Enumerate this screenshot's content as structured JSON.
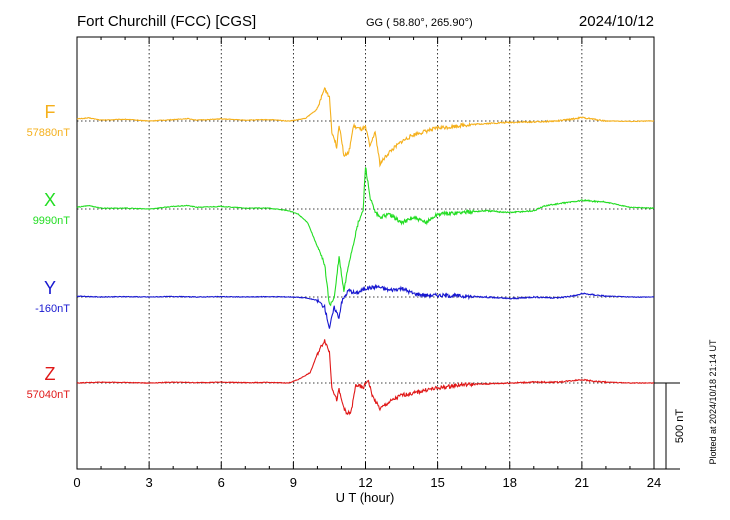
{
  "header": {
    "station": "Fort Churchill (FCC)  [CGS]",
    "coords": "GG ( 58.80°, 265.90°)",
    "date": "2024/10/12"
  },
  "footer": {
    "plotted": "Plotted at 2024/10/18 21:14 UT"
  },
  "chart_data": {
    "type": "line",
    "xlabel": "U T (hour)",
    "xlim": [
      0,
      24
    ],
    "xticks": [
      "0",
      "3",
      "6",
      "9",
      "12",
      "15",
      "18",
      "21",
      "24"
    ],
    "scale_bar": {
      "label": "500 nT",
      "value_nT": 500
    },
    "grid": true,
    "series": [
      {
        "name": "F",
        "baseline_label": "57880nT",
        "color": "#f5b01c",
        "points": [
          [
            0,
            12
          ],
          [
            0.5,
            18
          ],
          [
            1,
            5
          ],
          [
            2,
            10
          ],
          [
            3,
            0
          ],
          [
            4,
            8
          ],
          [
            4.6,
            14
          ],
          [
            5,
            5
          ],
          [
            6,
            12
          ],
          [
            7,
            5
          ],
          [
            8,
            8
          ],
          [
            8.8,
            0
          ],
          [
            9,
            3
          ],
          [
            9.5,
            15
          ],
          [
            10,
            70
          ],
          [
            10.3,
            190
          ],
          [
            10.5,
            140
          ],
          [
            10.6,
            -60
          ],
          [
            10.8,
            -150
          ],
          [
            10.9,
            -20
          ],
          [
            11,
            -100
          ],
          [
            11.1,
            -200
          ],
          [
            11.3,
            -190
          ],
          [
            11.5,
            -30
          ],
          [
            11.8,
            -50
          ],
          [
            12,
            -40
          ],
          [
            12.2,
            -150
          ],
          [
            12.4,
            -60
          ],
          [
            12.6,
            -250
          ],
          [
            13,
            -180
          ],
          [
            13.5,
            -120
          ],
          [
            14,
            -80
          ],
          [
            14.5,
            -60
          ],
          [
            15,
            -40
          ],
          [
            15.5,
            -35
          ],
          [
            16,
            -25
          ],
          [
            17,
            -15
          ],
          [
            18,
            -8
          ],
          [
            19,
            -5
          ],
          [
            20,
            0
          ],
          [
            20.8,
            15
          ],
          [
            21,
            20
          ],
          [
            21.5,
            10
          ],
          [
            22,
            0
          ],
          [
            23,
            -2
          ],
          [
            24,
            0
          ]
        ]
      },
      {
        "name": "X",
        "baseline_label": "9990nT",
        "color": "#22dd22",
        "points": [
          [
            0,
            10
          ],
          [
            0.5,
            20
          ],
          [
            1,
            5
          ],
          [
            2,
            5
          ],
          [
            3,
            0
          ],
          [
            4,
            15
          ],
          [
            4.6,
            20
          ],
          [
            5,
            10
          ],
          [
            6,
            15
          ],
          [
            7,
            5
          ],
          [
            8,
            5
          ],
          [
            8.8,
            -10
          ],
          [
            9.2,
            -30
          ],
          [
            9.6,
            -80
          ],
          [
            10,
            -220
          ],
          [
            10.3,
            -320
          ],
          [
            10.5,
            -560
          ],
          [
            10.7,
            -520
          ],
          [
            10.9,
            -280
          ],
          [
            11.1,
            -480
          ],
          [
            11.3,
            -320
          ],
          [
            11.7,
            -80
          ],
          [
            11.9,
            -10
          ],
          [
            12,
            250
          ],
          [
            12.2,
            60
          ],
          [
            12.4,
            -20
          ],
          [
            12.6,
            -50
          ],
          [
            13,
            -30
          ],
          [
            13.5,
            -80
          ],
          [
            14,
            -50
          ],
          [
            14.5,
            -80
          ],
          [
            15,
            -30
          ],
          [
            16,
            -20
          ],
          [
            17,
            -10
          ],
          [
            18,
            -20
          ],
          [
            19,
            -10
          ],
          [
            19.5,
            20
          ],
          [
            20,
            30
          ],
          [
            20.5,
            40
          ],
          [
            21,
            50
          ],
          [
            22,
            40
          ],
          [
            23,
            10
          ],
          [
            24,
            5
          ]
        ]
      },
      {
        "name": "Y",
        "baseline_label": "-160nT",
        "color": "#1818d0",
        "points": [
          [
            0,
            5
          ],
          [
            1,
            0
          ],
          [
            2,
            2
          ],
          [
            3,
            0
          ],
          [
            4,
            3
          ],
          [
            5,
            0
          ],
          [
            6,
            2
          ],
          [
            7,
            0
          ],
          [
            8,
            2
          ],
          [
            9,
            0
          ],
          [
            9.5,
            -5
          ],
          [
            10,
            -20
          ],
          [
            10.3,
            -60
          ],
          [
            10.5,
            -180
          ],
          [
            10.7,
            -60
          ],
          [
            10.9,
            -120
          ],
          [
            11,
            -30
          ],
          [
            11.3,
            40
          ],
          [
            11.6,
            20
          ],
          [
            12,
            50
          ],
          [
            12.5,
            60
          ],
          [
            13,
            40
          ],
          [
            13.5,
            50
          ],
          [
            14,
            20
          ],
          [
            14.5,
            10
          ],
          [
            15,
            10
          ],
          [
            16,
            5
          ],
          [
            17,
            0
          ],
          [
            18,
            -10
          ],
          [
            19,
            0
          ],
          [
            20,
            -5
          ],
          [
            20.8,
            10
          ],
          [
            21,
            20
          ],
          [
            22,
            5
          ],
          [
            23,
            0
          ],
          [
            24,
            0
          ]
        ]
      },
      {
        "name": "Z",
        "baseline_label": "57040nT",
        "color": "#e01818",
        "points": [
          [
            0,
            0
          ],
          [
            1,
            5
          ],
          [
            2,
            3
          ],
          [
            3,
            0
          ],
          [
            4,
            5
          ],
          [
            5,
            2
          ],
          [
            6,
            5
          ],
          [
            7,
            2
          ],
          [
            8,
            3
          ],
          [
            8.8,
            0
          ],
          [
            9.2,
            20
          ],
          [
            9.7,
            60
          ],
          [
            10,
            170
          ],
          [
            10.3,
            250
          ],
          [
            10.5,
            180
          ],
          [
            10.6,
            -20
          ],
          [
            10.8,
            -100
          ],
          [
            10.9,
            -40
          ],
          [
            11,
            -100
          ],
          [
            11.2,
            -180
          ],
          [
            11.4,
            -170
          ],
          [
            11.6,
            -10
          ],
          [
            11.9,
            -30
          ],
          [
            12.1,
            20
          ],
          [
            12.3,
            -80
          ],
          [
            12.6,
            -150
          ],
          [
            13,
            -110
          ],
          [
            13.5,
            -70
          ],
          [
            14,
            -60
          ],
          [
            14.5,
            -40
          ],
          [
            15,
            -30
          ],
          [
            15.5,
            -20
          ],
          [
            16,
            -10
          ],
          [
            17,
            -5
          ],
          [
            18,
            0
          ],
          [
            19,
            5
          ],
          [
            20,
            5
          ],
          [
            21,
            20
          ],
          [
            21.5,
            10
          ],
          [
            22,
            5
          ],
          [
            23,
            0
          ],
          [
            24,
            0
          ]
        ]
      }
    ]
  }
}
